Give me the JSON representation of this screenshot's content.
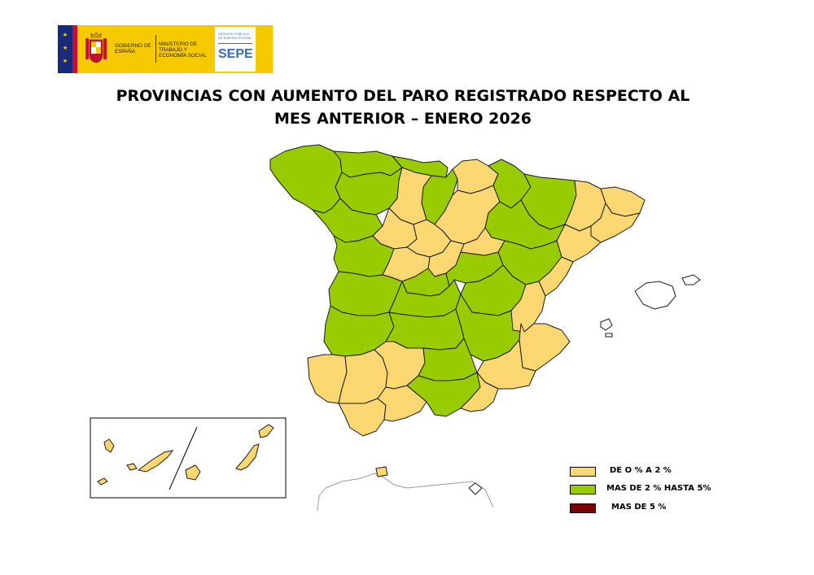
{
  "header": {
    "logo_text_left": "GOBIERNO DE ESPAÑA",
    "logo_text_ministry": "MINISTERIO DE TRABAJO Y ECONOMÍA SOCIAL",
    "logo_text_sepe_small": "SERVICIO PÚBLICO DE EMPLEO ESTATAL",
    "logo_text_sepe": "SEPE"
  },
  "title": {
    "line1": "PROVINCIAS CON AUMENTO DEL PARO REGISTRADO RESPECTO AL",
    "line2": "MES ANTERIOR – ENERO 2026"
  },
  "colors": {
    "low": "#fcd772",
    "mid": "#99cc00",
    "high": "#7a0000",
    "border": "#1a1a1a"
  },
  "legend": {
    "items": [
      {
        "label": "DE O % A  2 %",
        "color": "#fcd772"
      },
      {
        "label": "MAS DE 2 % HASTA 5%",
        "color": "#99cc00"
      },
      {
        "label": "MAS DE 5 %",
        "color": "#7a0000"
      }
    ]
  },
  "map": {
    "regions": [
      {
        "name": "galicia-coast",
        "category": "mid"
      },
      {
        "name": "asturias",
        "category": "mid"
      },
      {
        "name": "cantabria",
        "category": "mid"
      },
      {
        "name": "basque-country",
        "category": "low"
      },
      {
        "name": "navarra",
        "category": "mid"
      },
      {
        "name": "aragon-north",
        "category": "mid"
      },
      {
        "name": "catalonia",
        "category": "low"
      },
      {
        "name": "castilla-leon-west",
        "category": "mid"
      },
      {
        "name": "castilla-leon-center",
        "category": "low"
      },
      {
        "name": "extremadura",
        "category": "mid"
      },
      {
        "name": "madrid-area",
        "category": "mid"
      },
      {
        "name": "castilla-la-mancha",
        "category": "mid"
      },
      {
        "name": "valencia",
        "category": "low"
      },
      {
        "name": "andalucia-west",
        "category": "low"
      },
      {
        "name": "jaen-granada",
        "category": "mid"
      },
      {
        "name": "murcia",
        "category": "low"
      },
      {
        "name": "canary-islands",
        "category": "low"
      },
      {
        "name": "ceuta",
        "category": "low"
      }
    ]
  }
}
